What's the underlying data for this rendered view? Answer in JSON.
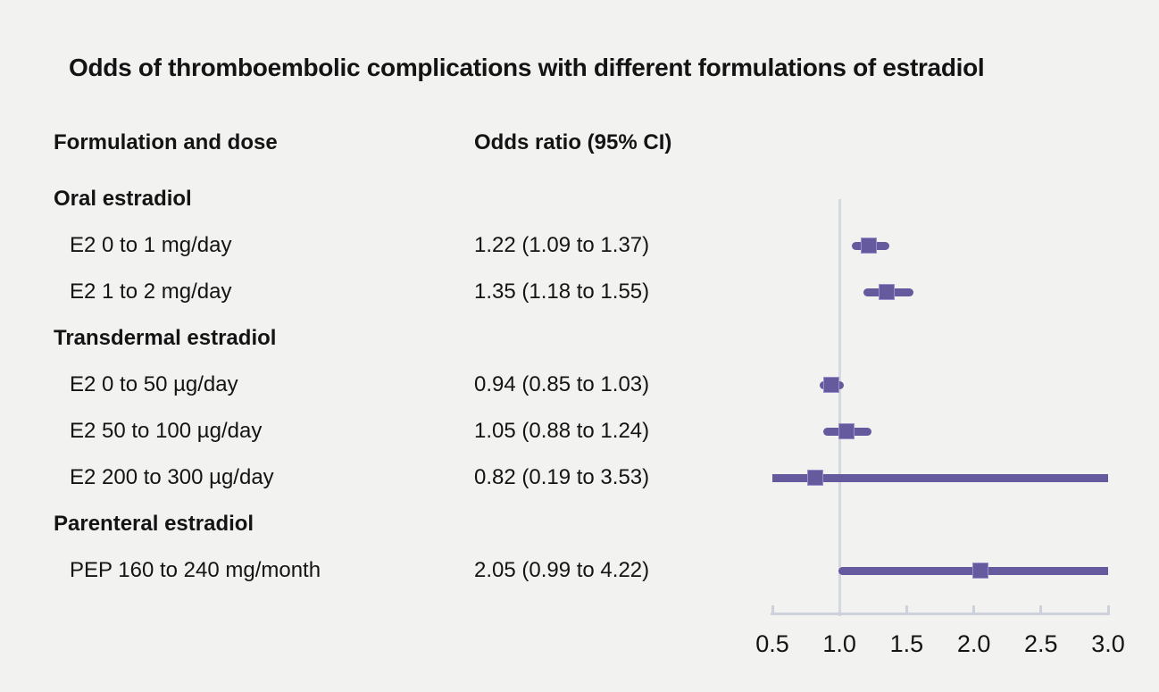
{
  "title": "Odds of thromboembolic complications with different formulations of estradiol",
  "columns": {
    "formulation": "Formulation and dose",
    "odds_ratio": "Odds ratio (95% CI)"
  },
  "colors": {
    "background": "#f2f2f1",
    "text": "#141414",
    "accent": "#655a9e",
    "marker_border": "#9a8fc7",
    "axis": "#ccd1db",
    "reference_line": "#d4d8e0"
  },
  "chart_data": {
    "type": "forest",
    "title": "Odds of thromboembolic complications with different formulations of estradiol",
    "xlim": [
      0.5,
      3.0
    ],
    "x_ticks": [
      0.5,
      1.0,
      1.5,
      2.0,
      2.5,
      3.0
    ],
    "x_tick_labels": [
      "0.5",
      "1.0",
      "1.5",
      "2.0",
      "2.5",
      "3.0"
    ],
    "reference_line": 1.0,
    "grid": false,
    "legend": false,
    "rows": [
      {
        "type": "group",
        "label": "Oral estradiol"
      },
      {
        "type": "item",
        "label": "E2 0 to 1 mg/day",
        "or_text": "1.22 (1.09 to 1.37)",
        "or": 1.22,
        "lo": 1.09,
        "hi": 1.37
      },
      {
        "type": "item",
        "label": "E2 1 to 2 mg/day",
        "or_text": "1.35 (1.18 to 1.55)",
        "or": 1.35,
        "lo": 1.18,
        "hi": 1.55
      },
      {
        "type": "group",
        "label": "Transdermal estradiol"
      },
      {
        "type": "item",
        "label": "E2 0 to 50 µg/day",
        "or_text": "0.94 (0.85 to 1.03)",
        "or": 0.94,
        "lo": 0.85,
        "hi": 1.03
      },
      {
        "type": "item",
        "label": "E2 50 to 100 µg/day",
        "or_text": "1.05 (0.88 to 1.24)",
        "or": 1.05,
        "lo": 0.88,
        "hi": 1.24
      },
      {
        "type": "item",
        "label": "E2 200 to 300 µg/day",
        "or_text": "0.82 (0.19 to 3.53)",
        "or": 0.82,
        "lo": 0.19,
        "hi": 3.53
      },
      {
        "type": "group",
        "label": "Parenteral estradiol"
      },
      {
        "type": "item",
        "label": "PEP 160 to 240 mg/month",
        "or_text": "2.05 (0.99 to 4.22)",
        "or": 2.05,
        "lo": 0.99,
        "hi": 4.22
      }
    ]
  }
}
